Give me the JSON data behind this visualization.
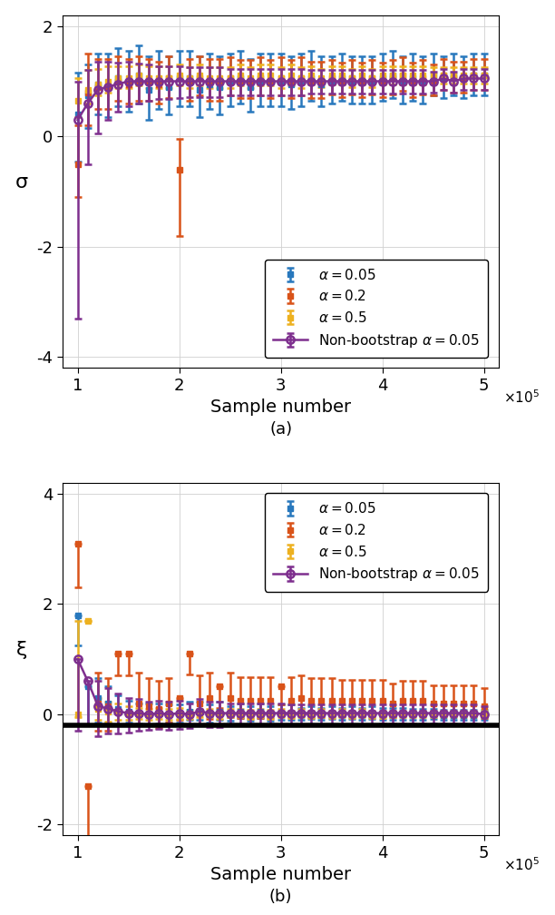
{
  "title_a": "(a)",
  "title_b": "(b)",
  "xlabel": "Sample number",
  "ylabel_a": "σ",
  "ylabel_b": "ξ",
  "xlim_a": [
    85000.0,
    515000.0
  ],
  "xlim_b": [
    85000.0,
    515000.0
  ],
  "ylim_a": [
    -4.2,
    2.2
  ],
  "ylim_b": [
    -2.2,
    4.2
  ],
  "yticks_a": [
    -4,
    -2,
    0,
    2
  ],
  "yticks_b": [
    -2,
    0,
    2,
    4
  ],
  "xticks": [
    100000.0,
    200000.0,
    300000.0,
    400000.0,
    500000.0
  ],
  "xtick_labels": [
    "1",
    "2",
    "3",
    "4",
    "5"
  ],
  "colors": {
    "blue": "#2878BD",
    "orange": "#D95319",
    "yellow": "#EDB120",
    "purple": "#7E2F8E"
  },
  "hline_b": -0.2,
  "x_data": [
    100000.0,
    110000.0,
    120000.0,
    130000.0,
    140000.0,
    150000.0,
    160000.0,
    170000.0,
    180000.0,
    190000.0,
    200000.0,
    210000.0,
    220000.0,
    230000.0,
    240000.0,
    250000.0,
    260000.0,
    270000.0,
    280000.0,
    290000.0,
    300000.0,
    310000.0,
    320000.0,
    330000.0,
    340000.0,
    350000.0,
    360000.0,
    370000.0,
    380000.0,
    390000.0,
    400000.0,
    410000.0,
    420000.0,
    430000.0,
    440000.0,
    450000.0,
    460000.0,
    470000.0,
    480000.0,
    490000.0,
    500000.0
  ],
  "sigma_blue_mean": [
    0.4,
    0.75,
    0.95,
    0.9,
    1.05,
    1.0,
    1.1,
    0.85,
    1.0,
    0.9,
    1.05,
    1.05,
    0.85,
    0.95,
    0.9,
    1.0,
    1.05,
    0.9,
    1.0,
    1.0,
    1.0,
    0.95,
    1.0,
    1.05,
    0.95,
    1.0,
    1.05,
    1.0,
    1.0,
    1.0,
    1.05,
    1.1,
    1.0,
    1.05,
    1.0,
    1.1,
    1.05,
    1.1,
    1.05,
    1.1,
    1.1
  ],
  "sigma_blue_lo": [
    0.85,
    0.6,
    0.55,
    0.55,
    0.5,
    0.55,
    0.5,
    0.55,
    0.5,
    0.5,
    0.5,
    0.5,
    0.5,
    0.45,
    0.5,
    0.45,
    0.45,
    0.45,
    0.45,
    0.45,
    0.45,
    0.45,
    0.45,
    0.4,
    0.4,
    0.4,
    0.4,
    0.4,
    0.4,
    0.4,
    0.4,
    0.4,
    0.4,
    0.4,
    0.4,
    0.35,
    0.35,
    0.35,
    0.35,
    0.35,
    0.35
  ],
  "sigma_blue_hi": [
    0.75,
    0.55,
    0.55,
    0.6,
    0.55,
    0.55,
    0.55,
    0.6,
    0.55,
    0.55,
    0.5,
    0.5,
    0.6,
    0.55,
    0.55,
    0.5,
    0.5,
    0.5,
    0.5,
    0.5,
    0.5,
    0.5,
    0.5,
    0.5,
    0.5,
    0.45,
    0.45,
    0.45,
    0.45,
    0.45,
    0.45,
    0.45,
    0.45,
    0.45,
    0.45,
    0.4,
    0.4,
    0.4,
    0.4,
    0.4,
    0.4
  ],
  "sigma_orange_mean": [
    -0.5,
    0.8,
    0.9,
    0.9,
    1.0,
    0.95,
    1.0,
    1.0,
    0.95,
    1.05,
    -0.6,
    1.0,
    1.05,
    1.0,
    1.0,
    1.05,
    1.0,
    1.0,
    1.05,
    1.0,
    1.05,
    1.0,
    1.05,
    1.0,
    1.0,
    1.05,
    1.0,
    1.05,
    1.0,
    1.05,
    1.0,
    1.05,
    1.1,
    1.0,
    1.05,
    1.0,
    1.1,
    1.05,
    1.05,
    1.1,
    1.1
  ],
  "sigma_orange_lo": [
    0.6,
    0.6,
    0.4,
    0.4,
    0.35,
    0.35,
    0.35,
    0.35,
    0.35,
    0.35,
    1.2,
    0.35,
    0.3,
    0.35,
    0.35,
    0.3,
    0.3,
    0.3,
    0.3,
    0.3,
    0.3,
    0.3,
    0.3,
    0.3,
    0.3,
    0.28,
    0.28,
    0.28,
    0.28,
    0.28,
    0.28,
    0.28,
    0.28,
    0.28,
    0.28,
    0.25,
    0.25,
    0.25,
    0.25,
    0.25,
    0.25
  ],
  "sigma_orange_hi": [
    0.7,
    0.7,
    0.5,
    0.5,
    0.45,
    0.45,
    0.45,
    0.4,
    0.4,
    0.4,
    0.55,
    0.4,
    0.4,
    0.4,
    0.4,
    0.38,
    0.38,
    0.38,
    0.38,
    0.38,
    0.38,
    0.38,
    0.38,
    0.35,
    0.35,
    0.33,
    0.33,
    0.33,
    0.33,
    0.33,
    0.33,
    0.33,
    0.33,
    0.33,
    0.33,
    0.3,
    0.3,
    0.3,
    0.3,
    0.3,
    0.3
  ],
  "sigma_yellow_mean": [
    0.65,
    0.85,
    0.95,
    1.0,
    1.05,
    1.05,
    1.1,
    1.05,
    1.05,
    1.05,
    1.1,
    1.05,
    1.1,
    1.05,
    1.05,
    1.05,
    1.1,
    1.05,
    1.1,
    1.1,
    1.05,
    1.1,
    1.05,
    1.1,
    1.05,
    1.1,
    1.1,
    1.05,
    1.1,
    1.05,
    1.1,
    1.1,
    1.1,
    1.1,
    1.1,
    1.1,
    1.1,
    1.1,
    1.1,
    1.1,
    1.1
  ],
  "sigma_yellow_lo": [
    0.3,
    0.25,
    0.2,
    0.2,
    0.18,
    0.18,
    0.18,
    0.18,
    0.18,
    0.18,
    0.18,
    0.18,
    0.18,
    0.18,
    0.18,
    0.18,
    0.18,
    0.18,
    0.18,
    0.18,
    0.18,
    0.18,
    0.18,
    0.16,
    0.16,
    0.16,
    0.16,
    0.16,
    0.16,
    0.16,
    0.16,
    0.16,
    0.16,
    0.16,
    0.16,
    0.14,
    0.14,
    0.14,
    0.14,
    0.14,
    0.14
  ],
  "sigma_yellow_hi": [
    0.4,
    0.35,
    0.28,
    0.28,
    0.22,
    0.22,
    0.2,
    0.22,
    0.22,
    0.22,
    0.2,
    0.2,
    0.2,
    0.2,
    0.2,
    0.2,
    0.2,
    0.2,
    0.2,
    0.2,
    0.2,
    0.2,
    0.2,
    0.18,
    0.18,
    0.18,
    0.18,
    0.18,
    0.18,
    0.18,
    0.18,
    0.18,
    0.18,
    0.18,
    0.18,
    0.16,
    0.16,
    0.16,
    0.16,
    0.16,
    0.16
  ],
  "sigma_purple_mean": [
    0.3,
    0.6,
    0.85,
    0.9,
    0.95,
    1.0,
    1.0,
    1.0,
    1.0,
    1.0,
    1.0,
    1.0,
    1.0,
    1.0,
    1.0,
    1.0,
    1.0,
    1.0,
    1.0,
    1.0,
    1.0,
    1.0,
    1.0,
    1.0,
    1.0,
    1.0,
    1.0,
    1.0,
    1.0,
    1.0,
    1.0,
    1.0,
    1.0,
    1.0,
    1.0,
    1.0,
    1.05,
    1.0,
    1.05,
    1.05,
    1.05
  ],
  "sigma_purple_lo": [
    3.6,
    1.1,
    0.8,
    0.6,
    0.5,
    0.45,
    0.4,
    0.35,
    0.32,
    0.32,
    0.3,
    0.28,
    0.28,
    0.28,
    0.28,
    0.25,
    0.25,
    0.25,
    0.25,
    0.25,
    0.25,
    0.25,
    0.25,
    0.22,
    0.22,
    0.22,
    0.22,
    0.22,
    0.22,
    0.22,
    0.22,
    0.22,
    0.22,
    0.22,
    0.22,
    0.2,
    0.2,
    0.2,
    0.2,
    0.2,
    0.2
  ],
  "sigma_purple_hi": [
    0.7,
    0.6,
    0.5,
    0.45,
    0.38,
    0.35,
    0.32,
    0.3,
    0.28,
    0.28,
    0.28,
    0.25,
    0.25,
    0.25,
    0.25,
    0.22,
    0.22,
    0.22,
    0.22,
    0.22,
    0.22,
    0.22,
    0.22,
    0.2,
    0.2,
    0.2,
    0.2,
    0.2,
    0.2,
    0.2,
    0.2,
    0.2,
    0.2,
    0.2,
    0.2,
    0.18,
    0.18,
    0.18,
    0.18,
    0.18,
    0.18
  ],
  "xi_blue_mean": [
    1.8,
    0.5,
    0.3,
    0.2,
    0.1,
    0.05,
    0.02,
    0.0,
    0.02,
    0.0,
    0.0,
    0.05,
    0.05,
    0.0,
    0.05,
    0.0,
    0.05,
    0.0,
    0.05,
    0.0,
    0.02,
    0.02,
    0.0,
    0.02,
    0.0,
    0.02,
    0.0,
    0.02,
    0.0,
    0.02,
    0.0,
    0.0,
    0.0,
    0.0,
    0.0,
    0.0,
    -0.02,
    -0.02,
    -0.02,
    -0.02,
    -0.02
  ],
  "xi_blue_lo": [
    0.55,
    0.7,
    0.45,
    0.35,
    0.3,
    0.2,
    0.18,
    0.18,
    0.18,
    0.15,
    0.15,
    0.15,
    0.15,
    0.15,
    0.15,
    0.12,
    0.12,
    0.12,
    0.12,
    0.12,
    0.12,
    0.12,
    0.1,
    0.1,
    0.1,
    0.1,
    0.1,
    0.1,
    0.1,
    0.1,
    0.1,
    0.1,
    0.1,
    0.1,
    0.1,
    0.08,
    0.08,
    0.08,
    0.08,
    0.08,
    0.08
  ],
  "xi_blue_hi": [
    0.0,
    0.0,
    0.35,
    0.3,
    0.25,
    0.2,
    0.18,
    0.2,
    0.18,
    0.18,
    0.18,
    0.18,
    0.18,
    0.18,
    0.18,
    0.15,
    0.15,
    0.15,
    0.15,
    0.15,
    0.15,
    0.15,
    0.12,
    0.12,
    0.12,
    0.12,
    0.12,
    0.12,
    0.12,
    0.12,
    0.12,
    0.12,
    0.12,
    0.1,
    0.1,
    0.1,
    0.1,
    0.1,
    0.1,
    0.1,
    0.1
  ],
  "xi_orange_mean": [
    3.1,
    -1.3,
    0.2,
    0.15,
    1.1,
    1.1,
    0.2,
    0.15,
    0.1,
    0.2,
    0.3,
    1.1,
    0.2,
    0.3,
    0.5,
    0.3,
    0.25,
    0.25,
    0.25,
    0.25,
    0.5,
    0.25,
    0.3,
    0.25,
    0.25,
    0.25,
    0.25,
    0.25,
    0.25,
    0.25,
    0.25,
    0.2,
    0.25,
    0.25,
    0.25,
    0.2,
    0.2,
    0.2,
    0.2,
    0.2,
    0.15
  ],
  "xi_orange_lo": [
    0.8,
    1.3,
    0.5,
    0.45,
    0.4,
    0.4,
    0.4,
    0.35,
    0.35,
    0.35,
    0.4,
    0.38,
    0.38,
    0.38,
    0.38,
    0.35,
    0.32,
    0.32,
    0.32,
    0.32,
    0.32,
    0.3,
    0.3,
    0.3,
    0.3,
    0.28,
    0.28,
    0.28,
    0.28,
    0.28,
    0.28,
    0.25,
    0.25,
    0.25,
    0.25,
    0.22,
    0.22,
    0.22,
    0.22,
    0.22,
    0.22
  ],
  "xi_orange_hi": [
    0.0,
    0.0,
    0.55,
    0.5,
    0.0,
    0.0,
    0.55,
    0.5,
    0.5,
    0.45,
    0.0,
    0.0,
    0.5,
    0.45,
    0.0,
    0.45,
    0.42,
    0.42,
    0.42,
    0.42,
    0.0,
    0.42,
    0.4,
    0.4,
    0.4,
    0.4,
    0.38,
    0.38,
    0.38,
    0.38,
    0.38,
    0.35,
    0.35,
    0.35,
    0.35,
    0.32,
    0.32,
    0.32,
    0.32,
    0.32,
    0.32
  ],
  "xi_yellow_mean": [
    0.0,
    1.7,
    0.1,
    0.05,
    0.05,
    0.02,
    0.02,
    0.0,
    0.02,
    0.0,
    0.02,
    0.0,
    0.02,
    0.02,
    0.0,
    0.02,
    0.02,
    0.0,
    0.02,
    0.0,
    0.02,
    0.0,
    0.02,
    0.0,
    0.02,
    0.0,
    0.02,
    0.0,
    0.02,
    0.0,
    0.0,
    0.0,
    0.0,
    0.0,
    0.0,
    0.0,
    0.0,
    0.0,
    0.0,
    0.0,
    0.0
  ],
  "xi_yellow_lo": [
    0.05,
    0.0,
    0.2,
    0.18,
    0.15,
    0.12,
    0.1,
    0.1,
    0.1,
    0.1,
    0.1,
    0.08,
    0.08,
    0.08,
    0.08,
    0.08,
    0.08,
    0.08,
    0.08,
    0.08,
    0.08,
    0.07,
    0.07,
    0.07,
    0.07,
    0.07,
    0.07,
    0.07,
    0.07,
    0.07,
    0.07,
    0.06,
    0.06,
    0.06,
    0.06,
    0.06,
    0.06,
    0.06,
    0.06,
    0.06,
    0.06
  ],
  "xi_yellow_hi": [
    1.7,
    0.0,
    0.2,
    0.18,
    0.15,
    0.12,
    0.1,
    0.1,
    0.1,
    0.1,
    0.1,
    0.08,
    0.08,
    0.08,
    0.08,
    0.08,
    0.08,
    0.08,
    0.08,
    0.08,
    0.08,
    0.07,
    0.07,
    0.07,
    0.07,
    0.07,
    0.07,
    0.07,
    0.07,
    0.07,
    0.07,
    0.06,
    0.06,
    0.06,
    0.06,
    0.06,
    0.06,
    0.06,
    0.06,
    0.06,
    0.06
  ],
  "xi_purple_mean": [
    1.0,
    0.6,
    0.15,
    0.1,
    0.05,
    0.02,
    0.02,
    0.0,
    0.02,
    0.0,
    0.02,
    0.0,
    0.05,
    0.02,
    0.02,
    0.02,
    0.02,
    0.02,
    0.02,
    0.02,
    0.02,
    0.02,
    0.02,
    0.02,
    0.02,
    0.02,
    0.02,
    0.02,
    0.02,
    0.02,
    0.02,
    0.02,
    0.02,
    0.02,
    0.02,
    0.02,
    0.02,
    0.02,
    0.02,
    0.02,
    0.0
  ],
  "xi_purple_lo": [
    1.3,
    0.8,
    0.55,
    0.45,
    0.4,
    0.35,
    0.32,
    0.28,
    0.28,
    0.28,
    0.28,
    0.25,
    0.25,
    0.25,
    0.25,
    0.22,
    0.22,
    0.22,
    0.22,
    0.22,
    0.22,
    0.2,
    0.2,
    0.2,
    0.2,
    0.2,
    0.2,
    0.2,
    0.2,
    0.2,
    0.18,
    0.18,
    0.18,
    0.18,
    0.18,
    0.18,
    0.18,
    0.18,
    0.18,
    0.18,
    0.18
  ],
  "xi_purple_hi": [
    0.0,
    0.0,
    0.45,
    0.38,
    0.32,
    0.28,
    0.25,
    0.22,
    0.22,
    0.22,
    0.22,
    0.2,
    0.22,
    0.2,
    0.2,
    0.18,
    0.18,
    0.18,
    0.18,
    0.18,
    0.18,
    0.16,
    0.16,
    0.16,
    0.16,
    0.16,
    0.16,
    0.16,
    0.16,
    0.16,
    0.16,
    0.15,
    0.15,
    0.15,
    0.15,
    0.15,
    0.15,
    0.15,
    0.15,
    0.15,
    0.15
  ]
}
